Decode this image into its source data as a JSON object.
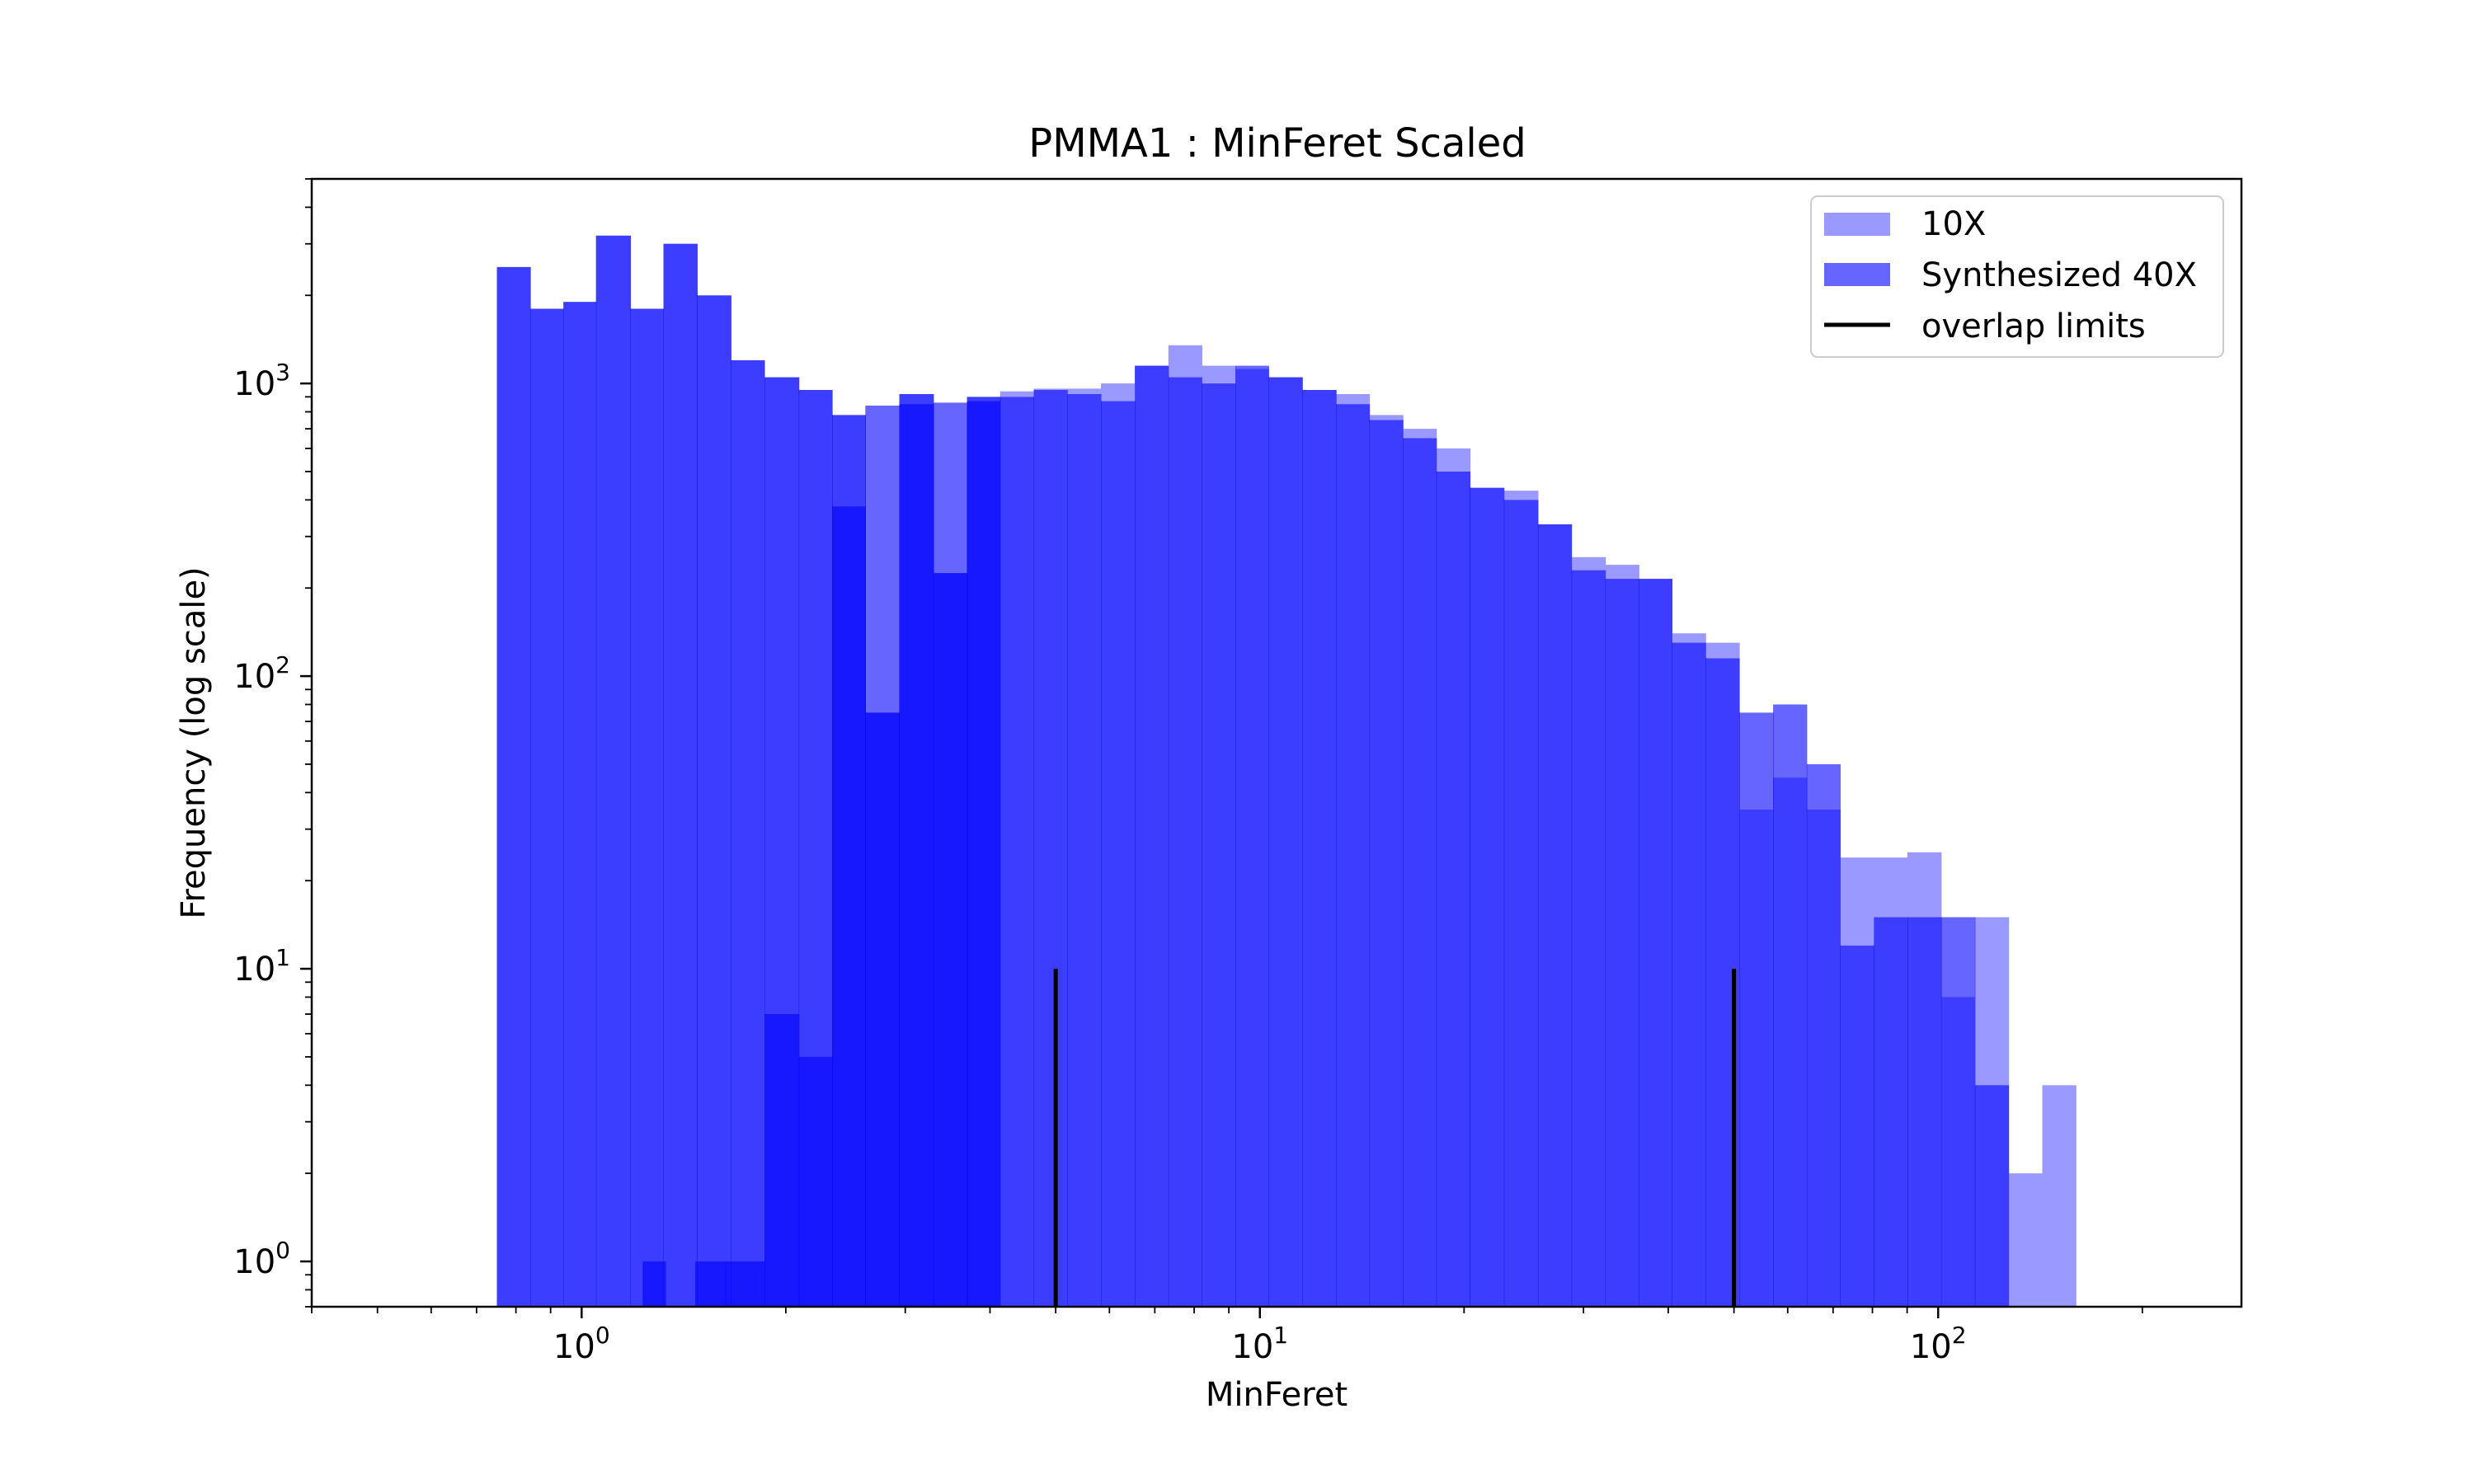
{
  "chart_data": {
    "type": "bar",
    "title": "PMMA1 : MinFeret Scaled",
    "xlabel": "MinFeret",
    "ylabel": "Frequency (log scale)",
    "xscale": "log",
    "yscale": "log",
    "xlim": [
      0.4,
      280
    ],
    "ylim": [
      0.7,
      5000
    ],
    "legend_position": "top-right",
    "grid": false,
    "x_ticks": [
      {
        "value": 1,
        "base": "10",
        "exp": "0"
      },
      {
        "value": 10,
        "base": "10",
        "exp": "1"
      },
      {
        "value": 100,
        "base": "10",
        "exp": "2"
      }
    ],
    "y_ticks": [
      {
        "value": 1,
        "base": "10",
        "exp": "0"
      },
      {
        "value": 10,
        "base": "10",
        "exp": "1"
      },
      {
        "value": 100,
        "base": "10",
        "exp": "2"
      },
      {
        "value": 1000,
        "base": "10",
        "exp": "3"
      }
    ],
    "series": [
      {
        "name": "10X",
        "color": "#9999ff",
        "opacity": 1,
        "bins": [
          [
            0.75,
            0.84,
            2500
          ],
          [
            0.84,
            0.94,
            1800
          ],
          [
            0.94,
            1.05,
            1900
          ],
          [
            1.05,
            1.18,
            3200
          ],
          [
            1.18,
            1.32,
            1800
          ],
          [
            1.32,
            1.48,
            3000
          ],
          [
            1.48,
            1.66,
            2000
          ],
          [
            1.66,
            1.86,
            1200
          ],
          [
            1.86,
            2.09,
            1050
          ],
          [
            2.09,
            2.34,
            950
          ],
          [
            2.34,
            2.62,
            780
          ],
          [
            2.62,
            2.94,
            75
          ],
          [
            2.94,
            3.3,
            920
          ],
          [
            3.3,
            3.7,
            225
          ],
          [
            3.7,
            4.14,
            900
          ],
          [
            4.14,
            4.64,
            940
          ],
          [
            4.64,
            5.2,
            960
          ],
          [
            5.2,
            5.83,
            960
          ],
          [
            5.83,
            6.54,
            1000
          ],
          [
            6.54,
            7.33,
            1150
          ],
          [
            7.33,
            8.21,
            1350
          ],
          [
            8.21,
            9.2,
            1150
          ],
          [
            9.2,
            10.3,
            1120
          ],
          [
            10.3,
            11.55,
            1050
          ],
          [
            11.55,
            12.95,
            950
          ],
          [
            12.95,
            14.5,
            920
          ],
          [
            14.5,
            16.25,
            780
          ],
          [
            16.25,
            18.2,
            700
          ],
          [
            18.2,
            20.4,
            600
          ],
          [
            20.4,
            22.9,
            440
          ],
          [
            22.9,
            25.7,
            430
          ],
          [
            25.7,
            28.8,
            330
          ],
          [
            28.8,
            32.3,
            255
          ],
          [
            32.3,
            36.2,
            240
          ],
          [
            36.2,
            40.5,
            215
          ],
          [
            40.5,
            45.4,
            140
          ],
          [
            45.4,
            50.9,
            130
          ],
          [
            50.9,
            57.1,
            35
          ],
          [
            57.1,
            64.0,
            45
          ],
          [
            64.0,
            71.7,
            35
          ],
          [
            71.7,
            80.4,
            24
          ],
          [
            80.4,
            90.1,
            24
          ],
          [
            90.1,
            101.0,
            25
          ],
          [
            101.0,
            113.3,
            8
          ],
          [
            113.3,
            127.0,
            15
          ],
          [
            127.0,
            142.4,
            2
          ],
          [
            142.4,
            159.6,
            4
          ]
        ]
      },
      {
        "name": "Synthesized 40X",
        "color": "#0000ff",
        "opacity": 0.6,
        "bins": [
          [
            0.75,
            0.84,
            2500
          ],
          [
            0.84,
            0.94,
            1800
          ],
          [
            0.94,
            1.05,
            1900
          ],
          [
            1.05,
            1.18,
            3200
          ],
          [
            1.18,
            1.32,
            1800
          ],
          [
            1.32,
            1.48,
            3000
          ],
          [
            1.48,
            1.66,
            2000
          ],
          [
            1.66,
            1.86,
            1200
          ],
          [
            1.86,
            2.09,
            1050
          ],
          [
            2.09,
            2.34,
            950
          ],
          [
            2.34,
            2.62,
            780
          ],
          [
            2.62,
            2.94,
            840
          ],
          [
            2.94,
            3.3,
            850
          ],
          [
            3.3,
            3.7,
            860
          ],
          [
            3.7,
            4.14,
            870
          ],
          [
            4.14,
            4.64,
            900
          ],
          [
            4.64,
            5.2,
            950
          ],
          [
            5.2,
            5.83,
            920
          ],
          [
            5.83,
            6.54,
            870
          ],
          [
            6.54,
            7.33,
            1150
          ],
          [
            7.33,
            8.21,
            1050
          ],
          [
            8.21,
            9.2,
            1000
          ],
          [
            9.2,
            10.3,
            1150
          ],
          [
            10.3,
            11.55,
            1050
          ],
          [
            11.55,
            12.95,
            950
          ],
          [
            12.95,
            14.5,
            850
          ],
          [
            14.5,
            16.25,
            750
          ],
          [
            16.25,
            18.2,
            650
          ],
          [
            18.2,
            20.4,
            500
          ],
          [
            20.4,
            22.9,
            440
          ],
          [
            22.9,
            25.7,
            400
          ],
          [
            25.7,
            28.8,
            330
          ],
          [
            28.8,
            32.3,
            230
          ],
          [
            32.3,
            36.2,
            215
          ],
          [
            36.2,
            40.5,
            215
          ],
          [
            40.5,
            45.4,
            130
          ],
          [
            45.4,
            50.9,
            115
          ],
          [
            50.9,
            57.1,
            75
          ],
          [
            57.1,
            64.0,
            80
          ],
          [
            64.0,
            71.7,
            50
          ],
          [
            71.7,
            80.4,
            12
          ],
          [
            80.4,
            90.1,
            15
          ],
          [
            90.1,
            101.0,
            15
          ],
          [
            101.0,
            113.3,
            15
          ],
          [
            113.3,
            127.0,
            4
          ]
        ]
      },
      {
        "name": "Synthesized 40X",
        "color": "#0000ff",
        "opacity": 0.6,
        "legend": false,
        "bins": [
          [
            1.23,
            1.33,
            1
          ],
          [
            1.47,
            1.63,
            1
          ],
          [
            1.63,
            1.86,
            1
          ],
          [
            1.86,
            2.09,
            7
          ],
          [
            2.09,
            2.34,
            5
          ],
          [
            2.34,
            2.62,
            380
          ],
          [
            2.62,
            2.94,
            75
          ],
          [
            2.94,
            3.3,
            920
          ],
          [
            3.3,
            3.7,
            225
          ],
          [
            3.7,
            4.14,
            900
          ]
        ]
      }
    ],
    "overlap_limits": {
      "name": "overlap limits",
      "x": [
        5,
        50
      ],
      "y_top": 10,
      "color": "#000000"
    }
  }
}
